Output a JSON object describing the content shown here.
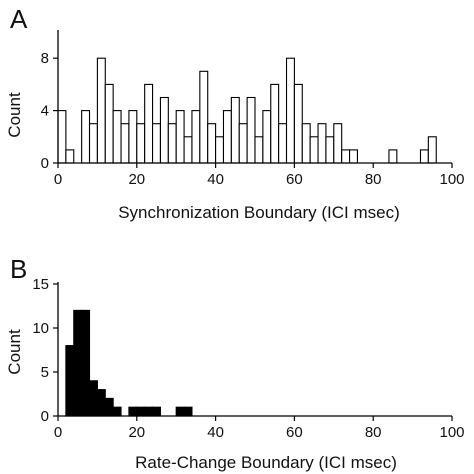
{
  "chart_data": [
    {
      "type": "bar",
      "panel_label": "A",
      "xlabel": "Synchronization Boundary (ICI msec)",
      "ylabel": "Count",
      "xlim": [
        0,
        100
      ],
      "ylim": [
        0,
        10
      ],
      "xticks": [
        0,
        20,
        40,
        60,
        80,
        100
      ],
      "yticks": [
        0,
        4,
        8
      ],
      "bin_width": 2,
      "bar_fill": "#ffffff",
      "bar_stroke": "#000000",
      "bins": [
        {
          "x": 0,
          "count": 4
        },
        {
          "x": 2,
          "count": 1
        },
        {
          "x": 4,
          "count": 0
        },
        {
          "x": 6,
          "count": 4
        },
        {
          "x": 8,
          "count": 3
        },
        {
          "x": 10,
          "count": 8
        },
        {
          "x": 12,
          "count": 6
        },
        {
          "x": 14,
          "count": 4
        },
        {
          "x": 16,
          "count": 3
        },
        {
          "x": 18,
          "count": 4
        },
        {
          "x": 20,
          "count": 3
        },
        {
          "x": 22,
          "count": 6
        },
        {
          "x": 24,
          "count": 3
        },
        {
          "x": 26,
          "count": 5
        },
        {
          "x": 28,
          "count": 3
        },
        {
          "x": 30,
          "count": 4
        },
        {
          "x": 32,
          "count": 2
        },
        {
          "x": 34,
          "count": 4
        },
        {
          "x": 36,
          "count": 7
        },
        {
          "x": 38,
          "count": 3
        },
        {
          "x": 40,
          "count": 2
        },
        {
          "x": 42,
          "count": 4
        },
        {
          "x": 44,
          "count": 5
        },
        {
          "x": 46,
          "count": 3
        },
        {
          "x": 48,
          "count": 5
        },
        {
          "x": 50,
          "count": 2
        },
        {
          "x": 52,
          "count": 4
        },
        {
          "x": 54,
          "count": 6
        },
        {
          "x": 56,
          "count": 3
        },
        {
          "x": 58,
          "count": 8
        },
        {
          "x": 60,
          "count": 6
        },
        {
          "x": 62,
          "count": 3
        },
        {
          "x": 64,
          "count": 2
        },
        {
          "x": 66,
          "count": 3
        },
        {
          "x": 68,
          "count": 2
        },
        {
          "x": 70,
          "count": 3
        },
        {
          "x": 72,
          "count": 1
        },
        {
          "x": 74,
          "count": 1
        },
        {
          "x": 76,
          "count": 0
        },
        {
          "x": 78,
          "count": 0
        },
        {
          "x": 80,
          "count": 0
        },
        {
          "x": 82,
          "count": 0
        },
        {
          "x": 84,
          "count": 1
        },
        {
          "x": 86,
          "count": 0
        },
        {
          "x": 88,
          "count": 0
        },
        {
          "x": 90,
          "count": 0
        },
        {
          "x": 92,
          "count": 1
        },
        {
          "x": 94,
          "count": 2
        }
      ]
    },
    {
      "type": "bar",
      "panel_label": "B",
      "xlabel": "Rate-Change Boundary (ICI msec)",
      "ylabel": "Count",
      "xlim": [
        0,
        100
      ],
      "ylim": [
        0,
        15
      ],
      "xticks": [
        0,
        20,
        40,
        60,
        80,
        100
      ],
      "yticks": [
        0,
        5,
        10,
        15
      ],
      "bin_width": 2,
      "bar_fill": "#000000",
      "bar_stroke": "#000000",
      "bins": [
        {
          "x": 2,
          "count": 8
        },
        {
          "x": 4,
          "count": 12
        },
        {
          "x": 6,
          "count": 12
        },
        {
          "x": 8,
          "count": 4
        },
        {
          "x": 10,
          "count": 3
        },
        {
          "x": 12,
          "count": 2
        },
        {
          "x": 14,
          "count": 1
        },
        {
          "x": 16,
          "count": 0
        },
        {
          "x": 18,
          "count": 1
        },
        {
          "x": 20,
          "count": 1
        },
        {
          "x": 22,
          "count": 1
        },
        {
          "x": 24,
          "count": 1
        },
        {
          "x": 26,
          "count": 0
        },
        {
          "x": 28,
          "count": 0
        },
        {
          "x": 30,
          "count": 1
        },
        {
          "x": 32,
          "count": 1
        }
      ]
    }
  ]
}
